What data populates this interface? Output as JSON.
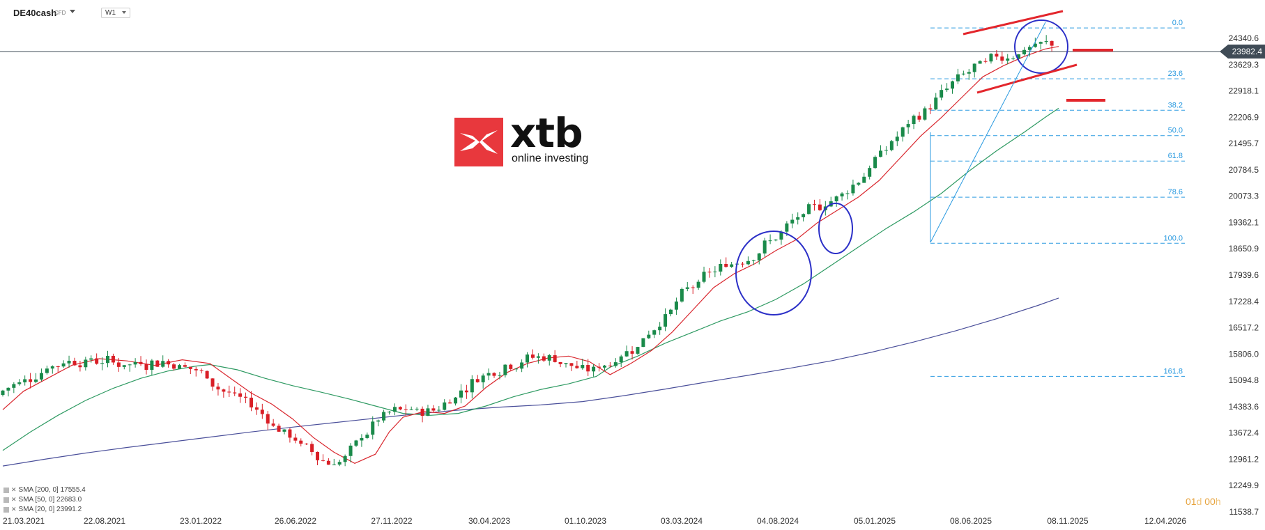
{
  "header": {
    "symbol": "DE40cash",
    "instrument_type": "CFD",
    "timeframe": "W1"
  },
  "logo": {
    "brand": "xtb",
    "tagline": "online investing"
  },
  "legend": [
    {
      "label": "SMA [200, 0]",
      "value": "17555.4",
      "color": "#4a4f9a"
    },
    {
      "label": "SMA [50, 0]",
      "value": "22683.0",
      "color": "#2e9a62"
    },
    {
      "label": "SMA [20, 0]",
      "value": "23991.2",
      "color": "#d9272e"
    }
  ],
  "countdown": {
    "days": "01",
    "d_unit": "d",
    "hours": "00",
    "h_unit": "h"
  },
  "current_price": "23982.4",
  "chart_data": {
    "type": "candlestick",
    "title": "",
    "x_tick_labels": [
      "21.03.2021",
      "22.08.2021",
      "23.01.2022",
      "26.06.2022",
      "27.11.2022",
      "30.04.2023",
      "01.10.2023",
      "03.03.2024",
      "04.08.2024",
      "05.01.2025",
      "08.06.2025",
      "08.11.2025",
      "12.04.2026"
    ],
    "y_tick_labels": [
      "24340.6",
      "23629.3",
      "22918.1",
      "22206.9",
      "21495.7",
      "20784.5",
      "20073.3",
      "19362.1",
      "18650.9",
      "17939.6",
      "17228.4",
      "16517.2",
      "15806.0",
      "15094.8",
      "14383.6",
      "13672.4",
      "12961.2",
      "12249.9",
      "11538.7"
    ],
    "ylim": [
      11538.7,
      24340.6
    ],
    "current_price": 23982.4,
    "fibonacci": {
      "levels": [
        "0.0",
        "23.6",
        "38.2",
        "50.0",
        "61.8",
        "78.6",
        "100.0",
        "161.8"
      ],
      "high": 24620,
      "low": 18800
    },
    "series": [
      {
        "name": "SMA [200, 0]",
        "color": "#4a4f9a",
        "points": [
          [
            0,
            12780
          ],
          [
            60,
            12960
          ],
          [
            120,
            13130
          ],
          [
            180,
            13280
          ],
          [
            240,
            13420
          ],
          [
            300,
            13560
          ],
          [
            360,
            13700
          ],
          [
            420,
            13830
          ],
          [
            480,
            13950
          ],
          [
            540,
            14070
          ],
          [
            600,
            14190
          ],
          [
            660,
            14290
          ],
          [
            720,
            14370
          ],
          [
            780,
            14430
          ],
          [
            840,
            14520
          ],
          [
            900,
            14680
          ],
          [
            960,
            14860
          ],
          [
            1020,
            15050
          ],
          [
            1080,
            15230
          ],
          [
            1140,
            15420
          ],
          [
            1200,
            15620
          ],
          [
            1260,
            15860
          ],
          [
            1320,
            16130
          ],
          [
            1380,
            16430
          ],
          [
            1440,
            16760
          ],
          [
            1500,
            17120
          ],
          [
            1530,
            17320
          ]
        ]
      },
      {
        "name": "SMA [50, 0]",
        "color": "#2e9a62",
        "points": [
          [
            0,
            13200
          ],
          [
            40,
            13700
          ],
          [
            80,
            14150
          ],
          [
            120,
            14550
          ],
          [
            160,
            14880
          ],
          [
            200,
            15150
          ],
          [
            240,
            15350
          ],
          [
            280,
            15480
          ],
          [
            300,
            15520
          ],
          [
            340,
            15380
          ],
          [
            380,
            15150
          ],
          [
            420,
            14950
          ],
          [
            460,
            14780
          ],
          [
            500,
            14600
          ],
          [
            540,
            14400
          ],
          [
            580,
            14200
          ],
          [
            620,
            14150
          ],
          [
            660,
            14200
          ],
          [
            700,
            14400
          ],
          [
            740,
            14650
          ],
          [
            780,
            14850
          ],
          [
            820,
            15000
          ],
          [
            860,
            15200
          ],
          [
            880,
            15450
          ],
          [
            920,
            15750
          ],
          [
            960,
            16100
          ],
          [
            1000,
            16400
          ],
          [
            1040,
            16700
          ],
          [
            1080,
            16950
          ],
          [
            1120,
            17280
          ],
          [
            1160,
            17700
          ],
          [
            1200,
            18200
          ],
          [
            1240,
            18700
          ],
          [
            1280,
            19200
          ],
          [
            1320,
            19650
          ],
          [
            1360,
            20150
          ],
          [
            1400,
            20750
          ],
          [
            1440,
            21300
          ],
          [
            1480,
            21800
          ],
          [
            1510,
            22200
          ],
          [
            1530,
            22450
          ]
        ]
      },
      {
        "name": "SMA [20, 0]",
        "color": "#d9272e",
        "points": [
          [
            0,
            14300
          ],
          [
            30,
            14800
          ],
          [
            60,
            15100
          ],
          [
            100,
            15500
          ],
          [
            140,
            15680
          ],
          [
            180,
            15620
          ],
          [
            220,
            15500
          ],
          [
            260,
            15650
          ],
          [
            300,
            15550
          ],
          [
            330,
            15150
          ],
          [
            360,
            14750
          ],
          [
            390,
            14450
          ],
          [
            420,
            14050
          ],
          [
            450,
            13550
          ],
          [
            480,
            13150
          ],
          [
            510,
            12850
          ],
          [
            540,
            13100
          ],
          [
            560,
            13700
          ],
          [
            580,
            14100
          ],
          [
            610,
            14250
          ],
          [
            640,
            14200
          ],
          [
            670,
            14400
          ],
          [
            700,
            14900
          ],
          [
            730,
            15300
          ],
          [
            760,
            15550
          ],
          [
            790,
            15700
          ],
          [
            820,
            15750
          ],
          [
            850,
            15600
          ],
          [
            880,
            15250
          ],
          [
            910,
            15550
          ],
          [
            940,
            15900
          ],
          [
            970,
            16400
          ],
          [
            1000,
            17000
          ],
          [
            1030,
            17600
          ],
          [
            1060,
            17980
          ],
          [
            1090,
            18250
          ],
          [
            1120,
            18600
          ],
          [
            1150,
            18900
          ],
          [
            1180,
            19350
          ],
          [
            1210,
            19700
          ],
          [
            1240,
            20050
          ],
          [
            1270,
            20500
          ],
          [
            1300,
            21100
          ],
          [
            1330,
            21700
          ],
          [
            1360,
            22200
          ],
          [
            1390,
            22750
          ],
          [
            1420,
            23300
          ],
          [
            1450,
            23600
          ],
          [
            1480,
            23850
          ],
          [
            1510,
            24050
          ],
          [
            1530,
            24120
          ]
        ]
      }
    ]
  }
}
